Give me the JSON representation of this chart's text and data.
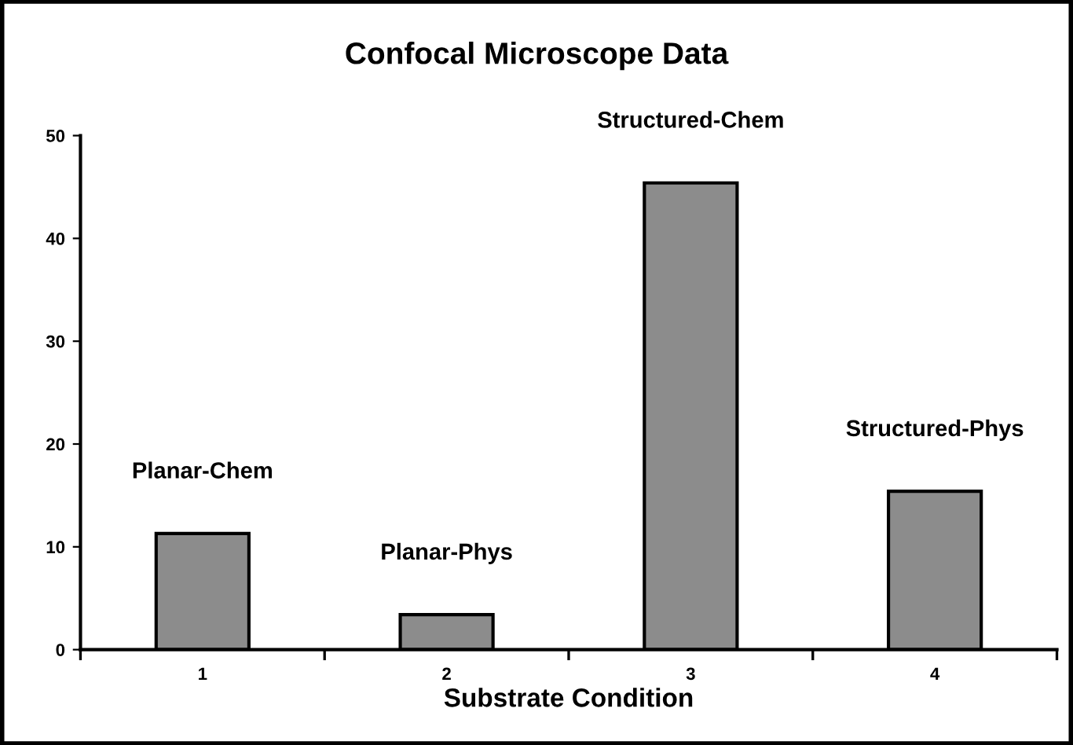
{
  "chart_data": {
    "type": "bar",
    "title": "Confocal Microscope Data",
    "xlabel": "Substrate Condition",
    "categories": [
      "1",
      "2",
      "3",
      "4"
    ],
    "values": [
      11.3,
      3.4,
      45.4,
      15.4
    ],
    "color": "#8c8c8c",
    "ylim": [
      0,
      50
    ],
    "yticks": [
      0,
      10,
      20,
      30,
      40,
      50
    ],
    "grid": false,
    "legend": false,
    "annotations": [
      "Planar-Chem",
      "Planar-Phys",
      "Structured-Chem",
      "Structured-Phys"
    ]
  }
}
